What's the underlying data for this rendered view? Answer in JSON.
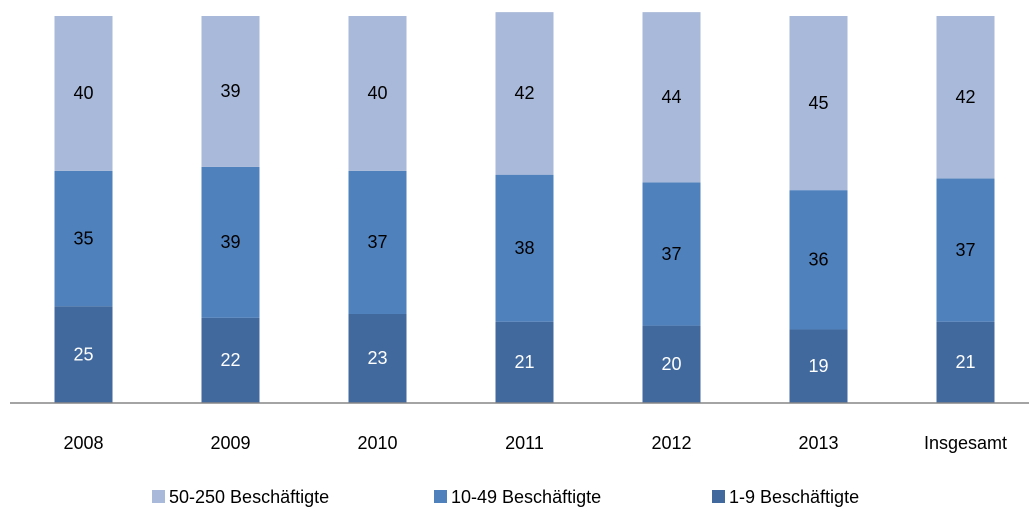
{
  "chart_data": {
    "type": "stacked_bar",
    "categories": [
      "2008",
      "2009",
      "2010",
      "2011",
      "2012",
      "2013",
      "Insgesamt"
    ],
    "series": [
      {
        "name": "1-9 Beschäftigte",
        "color": "#41699d",
        "values": [
          25,
          22,
          23,
          21,
          20,
          19,
          21
        ]
      },
      {
        "name": "10-49 Beschäftigte",
        "color": "#4f81bd",
        "values": [
          35,
          39,
          37,
          38,
          37,
          36,
          37
        ]
      },
      {
        "name": "50-250 Beschäftigte",
        "color": "#a9b9d9",
        "values": [
          40,
          39,
          40,
          42,
          44,
          45,
          42
        ]
      }
    ],
    "ylim": [
      0,
      100
    ],
    "legend": "bottom"
  }
}
